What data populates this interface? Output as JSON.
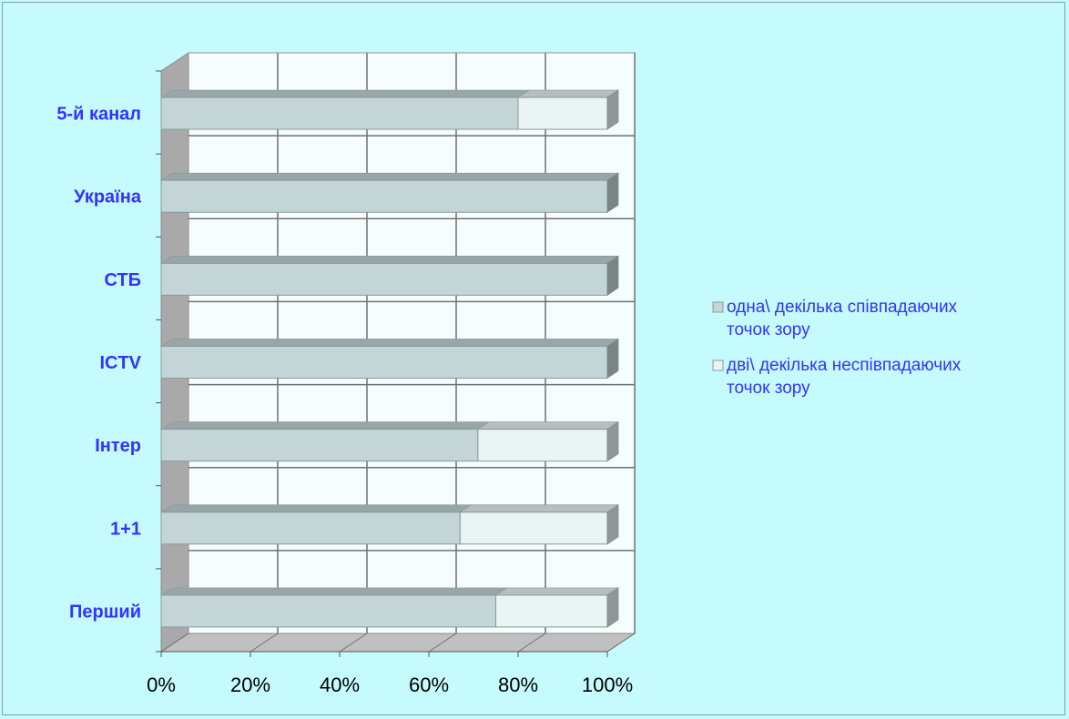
{
  "chart_data": {
    "type": "bar",
    "orientation": "horizontal",
    "stacked": "percent",
    "three_d": true,
    "categories": [
      "Перший",
      "1+1",
      "Інтер",
      "ICTV",
      "СТБ",
      "Україна",
      "5-й канал"
    ],
    "series": [
      {
        "name": "одна\\ декілька співпадаючих точок зору",
        "values": [
          75,
          67,
          71,
          100,
          100,
          100,
          80
        ],
        "color": "#c3d5d6"
      },
      {
        "name": "дві\\ декілька неспівпадаючих точок зору",
        "values": [
          25,
          33,
          29,
          0,
          0,
          0,
          20
        ],
        "color": "#e9f4f4"
      }
    ],
    "x_ticks": [
      "0%",
      "20%",
      "40%",
      "60%",
      "80%",
      "100%"
    ],
    "xlim": [
      0,
      100
    ],
    "grid": true,
    "legend_position": "right",
    "title": "",
    "xlabel": "",
    "ylabel": ""
  },
  "colors": {
    "background": "#c6fbfd",
    "plot_back_wall": "#f6fdfe",
    "side_wall": "#a9a9a9",
    "floor": "#c0c0c0",
    "gridline": "#707070",
    "label_color": "#3333ff"
  }
}
